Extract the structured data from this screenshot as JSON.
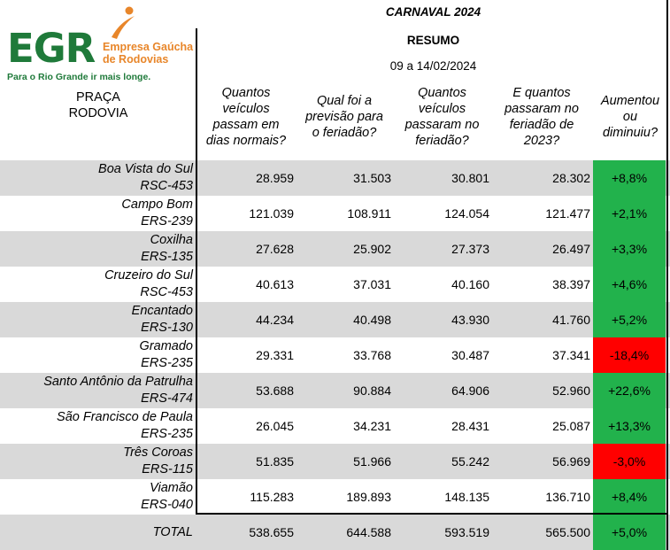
{
  "logo": {
    "egr": "EGR",
    "name_line1": "Empresa Gaúcha",
    "name_line2": "de Rodovias",
    "tagline": "Para o Rio Grande ir mais longe.",
    "brand_green": "#1f7a3a",
    "brand_orange": "#e8862a"
  },
  "header": {
    "title": "CARNAVAL 2024",
    "subtitle": "RESUMO",
    "period": "09 a 14/02/2024"
  },
  "columns": {
    "praca": [
      "PRAÇA",
      "RODOVIA"
    ],
    "normal": [
      "Quantos",
      "veículos",
      "passam em",
      "dias normais?"
    ],
    "forecast": [
      "Qual foi a",
      "previsão para",
      "o feriadão?"
    ],
    "actual": [
      "Quantos",
      "veículos",
      "passaram no",
      "feriadão?"
    ],
    "last_year": [
      "E quantos",
      "passaram no",
      "feriadão de",
      "2023?"
    ],
    "change": [
      "Aumentou",
      "ou",
      "diminuiu?"
    ]
  },
  "rows": [
    {
      "praca": "Boa Vista do Sul",
      "rodovia": "RSC-453",
      "normal": "28.959",
      "forecast": "31.503",
      "actual": "30.801",
      "last_year": "28.302",
      "change": "+8,8%",
      "trend": "pos"
    },
    {
      "praca": "Campo Bom",
      "rodovia": "ERS-239",
      "normal": "121.039",
      "forecast": "108.911",
      "actual": "124.054",
      "last_year": "121.477",
      "change": "+2,1%",
      "trend": "pos"
    },
    {
      "praca": "Coxilha",
      "rodovia": "ERS-135",
      "normal": "27.628",
      "forecast": "25.902",
      "actual": "27.373",
      "last_year": "26.497",
      "change": "+3,3%",
      "trend": "pos"
    },
    {
      "praca": "Cruzeiro do Sul",
      "rodovia": "RSC-453",
      "normal": "40.613",
      "forecast": "37.031",
      "actual": "40.160",
      "last_year": "38.397",
      "change": "+4,6%",
      "trend": "pos"
    },
    {
      "praca": "Encantado",
      "rodovia": "ERS-130",
      "normal": "44.234",
      "forecast": "40.498",
      "actual": "43.930",
      "last_year": "41.760",
      "change": "+5,2%",
      "trend": "pos"
    },
    {
      "praca": "Gramado",
      "rodovia": "ERS-235",
      "normal": "29.331",
      "forecast": "33.768",
      "actual": "30.487",
      "last_year": "37.341",
      "change": "-18,4%",
      "trend": "neg"
    },
    {
      "praca": "Santo Antônio da Patrulha",
      "rodovia": "ERS-474",
      "normal": "53.688",
      "forecast": "90.884",
      "actual": "64.906",
      "last_year": "52.960",
      "change": "+22,6%",
      "trend": "pos"
    },
    {
      "praca": "São Francisco de Paula",
      "rodovia": "ERS-235",
      "normal": "26.045",
      "forecast": "34.231",
      "actual": "28.431",
      "last_year": "25.087",
      "change": "+13,3%",
      "trend": "pos"
    },
    {
      "praca": "Três Coroas",
      "rodovia": "ERS-115",
      "normal": "51.835",
      "forecast": "51.966",
      "actual": "55.242",
      "last_year": "56.969",
      "change": "-3,0%",
      "trend": "neg"
    },
    {
      "praca": "Viamão",
      "rodovia": "ERS-040",
      "normal": "115.283",
      "forecast": "189.893",
      "actual": "148.135",
      "last_year": "136.710",
      "change": "+8,4%",
      "trend": "pos"
    }
  ],
  "total": {
    "label": "TOTAL",
    "normal": "538.655",
    "forecast": "644.588",
    "actual": "593.519",
    "last_year": "565.500",
    "change": "+5,0%",
    "trend": "pos"
  },
  "colors": {
    "increase": "#22b24c",
    "decrease": "#ff0000",
    "row_shade": "#d9d9d9"
  }
}
